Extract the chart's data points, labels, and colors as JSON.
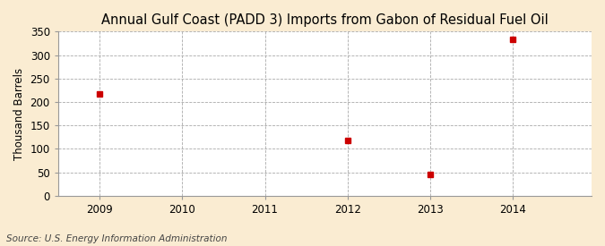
{
  "title": "Annual Gulf Coast (PADD 3) Imports from Gabon of Residual Fuel Oil",
  "ylabel": "Thousand Barrels",
  "source_text": "Source: U.S. Energy Information Administration",
  "background_color": "#faecd2",
  "plot_background_color": "#ffffff",
  "data_points": {
    "2009": 217,
    "2012": 117,
    "2013": 46,
    "2014": 333
  },
  "marker_color": "#cc0000",
  "marker_style": "s",
  "marker_size": 4,
  "ylim": [
    0,
    350
  ],
  "yticks": [
    0,
    50,
    100,
    150,
    200,
    250,
    300,
    350
  ],
  "xlim": [
    2008.5,
    2014.95
  ],
  "xticks": [
    2009,
    2010,
    2011,
    2012,
    2013,
    2014
  ],
  "title_fontsize": 10.5,
  "axis_fontsize": 8.5,
  "tick_fontsize": 8.5,
  "source_fontsize": 7.5,
  "grid_color": "#aaaaaa",
  "grid_linestyle": "--",
  "grid_linewidth": 0.6
}
